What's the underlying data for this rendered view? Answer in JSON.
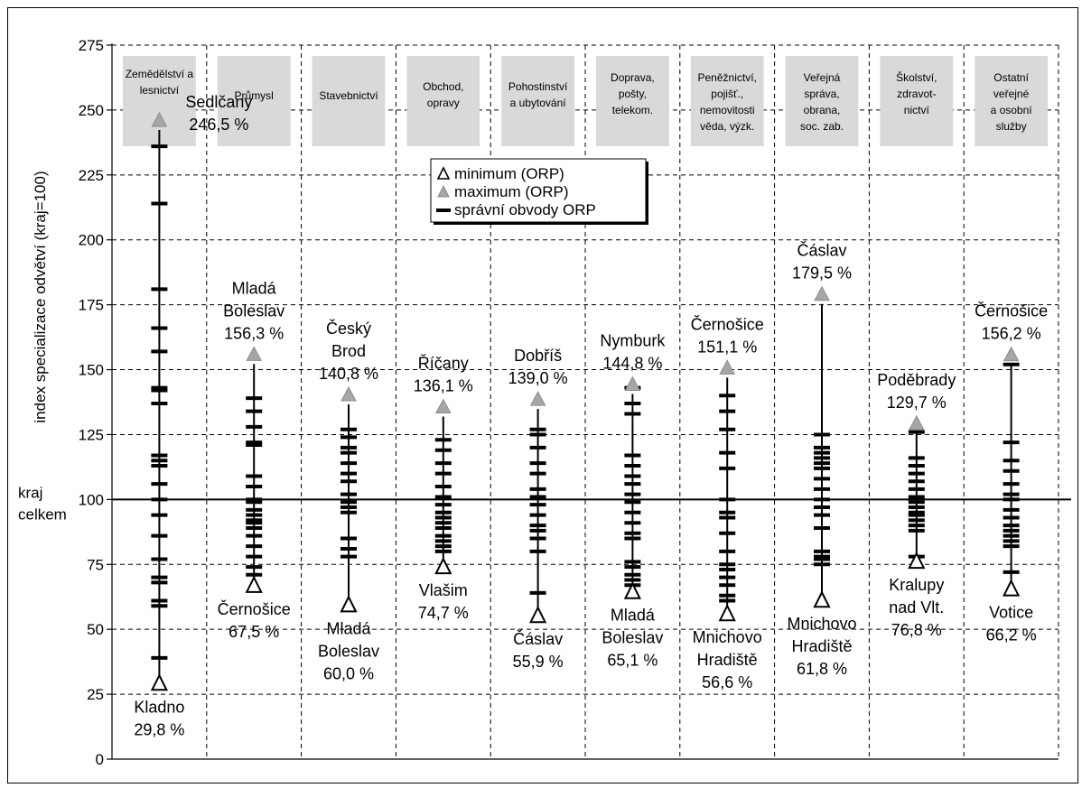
{
  "chart_data": {
    "type": "scatter",
    "ylabel": "index specializace odvětví (kraj=100)",
    "ylim": [
      0,
      275
    ],
    "yticks": [
      0,
      25,
      50,
      75,
      100,
      125,
      150,
      175,
      200,
      225,
      250,
      275
    ],
    "reference": {
      "value": 100,
      "label": [
        "kraj",
        "celkem"
      ]
    },
    "grid": "dashed",
    "legend": {
      "placement": "top-center",
      "entries": [
        {
          "label": "minimum (ORP)",
          "marker": "open-triangle"
        },
        {
          "label": "maximum (ORP)",
          "marker": "gray-triangle"
        },
        {
          "label": "správní obvody ORP",
          "marker": "dash"
        }
      ]
    },
    "colors": {
      "maximum_marker": "#a6a6a6",
      "header_box": "#d9d9d9",
      "grid": "#000000"
    },
    "categories": [
      {
        "header": [
          "Zemědělství a",
          "lesnictví"
        ],
        "min": 29.8,
        "min_label": [
          "Kladno",
          "29,8 %"
        ],
        "max": 246.5,
        "max_label": [
          "Sedlčany",
          "246,5 %"
        ],
        "orp": [
          236,
          214,
          181,
          166,
          157,
          143,
          142,
          137,
          117,
          115,
          113,
          106,
          100,
          94,
          86,
          77,
          70,
          68,
          61,
          59,
          39
        ]
      },
      {
        "header": [
          "Průmysl"
        ],
        "min": 67.5,
        "min_label": [
          "Černošice",
          "67,5 %"
        ],
        "max": 156.3,
        "max_label": [
          "Mladá",
          "Boleslav",
          "156,3 %"
        ],
        "orp": [
          139,
          134,
          128,
          122,
          121,
          109,
          105,
          100,
          99,
          96,
          94,
          92,
          91,
          89,
          86,
          82,
          78,
          74,
          71
        ]
      },
      {
        "header": [
          "Stavebnictví"
        ],
        "min": 60.0,
        "min_label": [
          "Mladá",
          "Boleslav",
          "60,0 %"
        ],
        "max": 140.8,
        "max_label": [
          "Český",
          "Brod",
          "140,8 %"
        ],
        "orp": [
          127,
          124,
          120,
          118,
          114,
          110,
          107,
          102,
          99,
          97,
          95,
          85,
          81,
          78
        ]
      },
      {
        "header": [
          "Obchod,",
          "opravy"
        ],
        "min": 74.7,
        "min_label": [
          "Vlašim",
          "74,7 %"
        ],
        "max": 136.1,
        "max_label": [
          "Říčany",
          "136,1 %"
        ],
        "orp": [
          123,
          119,
          114,
          110,
          105,
          101,
          98,
          95,
          93,
          91,
          89,
          86,
          84,
          82,
          80
        ]
      },
      {
        "header": [
          "Pohostinství",
          "a ubytování"
        ],
        "min": 55.9,
        "min_label": [
          "Čáslav",
          "55,9 %"
        ],
        "max": 139.0,
        "max_label": [
          "Dobříš",
          "139,0 %"
        ],
        "orp": [
          127,
          125,
          120,
          114,
          110,
          104,
          101,
          98,
          94,
          90,
          88,
          85,
          80,
          64
        ]
      },
      {
        "header": [
          "Doprava,",
          "pošty,",
          "telekom."
        ],
        "min": 65.1,
        "min_label": [
          "Mladá",
          "Boleslav",
          "65,1 %"
        ],
        "max": 144.8,
        "max_label": [
          "Nymburk",
          "144,8 %"
        ],
        "orp": [
          143,
          137,
          133,
          117,
          113,
          109,
          106,
          102,
          99,
          95,
          91,
          87,
          85,
          76,
          74,
          71,
          69,
          67
        ]
      },
      {
        "header": [
          "Peněžnictví,",
          "pojišť.,",
          "nemovitosti",
          "věda, výzk."
        ],
        "min": 56.6,
        "min_label": [
          "Mnichovo",
          "Hradiště",
          "56,6 %"
        ],
        "max": 151.1,
        "max_label": [
          "Černošice",
          "151,1 %"
        ],
        "orp": [
          140,
          134,
          127,
          118,
          112,
          100,
          95,
          93,
          87,
          80,
          75,
          73,
          70,
          67,
          63,
          61
        ]
      },
      {
        "header": [
          "Veřejná",
          "správa,",
          "obrana,",
          "soc. zab."
        ],
        "min": 61.8,
        "min_label": [
          "Mnichovo",
          "Hradiště",
          "61,8 %"
        ],
        "max": 179.5,
        "max_label": [
          "Čáslav",
          "179,5 %"
        ],
        "orp": [
          125,
          120,
          118,
          116,
          114,
          112,
          108,
          104,
          100,
          97,
          94,
          89,
          80,
          78,
          77,
          75
        ]
      },
      {
        "header": [
          "Školství,",
          "zdravot-",
          "nictví"
        ],
        "min": 76.8,
        "min_label": [
          "Kralupy",
          "nad Vlt.",
          "76,8 %"
        ],
        "max": 129.7,
        "max_label": [
          "Poděbrady",
          "129,7 %"
        ],
        "orp": [
          126,
          116,
          113,
          110,
          107,
          104,
          101,
          99,
          97,
          95,
          94,
          92,
          90,
          88,
          78
        ]
      },
      {
        "header": [
          "Ostatní",
          "veřejné",
          "a osobní",
          "služby"
        ],
        "min": 66.2,
        "min_label": [
          "Votice",
          "66,2 %"
        ],
        "max": 156.2,
        "max_label": [
          "Černošice",
          "156,2 %"
        ],
        "orp": [
          152,
          122,
          115,
          111,
          106,
          102,
          100,
          96,
          93,
          90,
          88,
          86,
          84,
          82,
          72
        ]
      }
    ]
  }
}
